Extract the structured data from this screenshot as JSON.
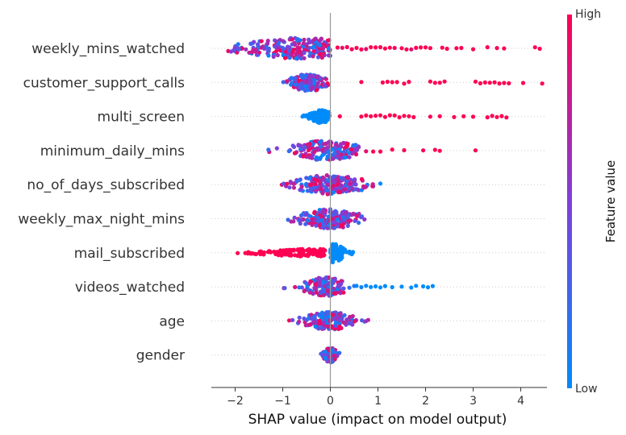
{
  "chart_data": {
    "type": "scatter",
    "subtype": "shap-beeswarm",
    "xlabel": "SHAP value (impact on model output)",
    "xlim": [
      -2.5,
      4.55
    ],
    "x_ticks": [
      -2,
      -1,
      0,
      1,
      2,
      3,
      4
    ],
    "colorbar": {
      "title": "Feature value",
      "high_label": "High",
      "low_label": "Low",
      "low_color": "#008bfb",
      "mid_color": "#7f3fdc",
      "high_color": "#ff0052"
    },
    "features": [
      {
        "name": "weekly_mins_watched",
        "neg": {
          "range": [
            -2.2,
            0.0
          ],
          "n": 230,
          "peak": -0.6,
          "spread": 0.65,
          "width": 13
        },
        "pos": {
          "points": [
            [
              0.15,
              1.0
            ],
            [
              0.25,
              0.9
            ],
            [
              0.35,
              1.0
            ],
            [
              0.45,
              0.95
            ],
            [
              0.55,
              1.0
            ],
            [
              0.65,
              1.0
            ],
            [
              0.75,
              0.9
            ],
            [
              0.85,
              1.0
            ],
            [
              0.95,
              1.0
            ],
            [
              1.05,
              1.0
            ],
            [
              1.15,
              1.0
            ],
            [
              1.25,
              1.0
            ],
            [
              1.35,
              0.95
            ],
            [
              1.5,
              1.0
            ],
            [
              1.6,
              1.0
            ],
            [
              1.7,
              0.9
            ],
            [
              1.8,
              1.0
            ],
            [
              1.9,
              1.0
            ],
            [
              2.0,
              1.0
            ],
            [
              2.1,
              1.0
            ],
            [
              2.35,
              1.0
            ],
            [
              2.45,
              1.0
            ],
            [
              2.65,
              1.0
            ],
            [
              2.75,
              1.0
            ],
            [
              3.0,
              1.0
            ],
            [
              3.3,
              1.0
            ],
            [
              3.5,
              1.0
            ],
            [
              3.65,
              1.0
            ],
            [
              4.3,
              1.0
            ],
            [
              4.4,
              1.0
            ]
          ]
        }
      },
      {
        "name": "customer_support_calls",
        "neg": {
          "range": [
            -1.0,
            0.0
          ],
          "n": 150,
          "peak": -0.45,
          "spread": 0.2,
          "width": 11
        },
        "pos": {
          "points": [
            [
              0.65,
              1.0
            ],
            [
              1.1,
              1.0
            ],
            [
              1.2,
              1.0
            ],
            [
              1.3,
              1.0
            ],
            [
              1.4,
              1.0
            ],
            [
              1.55,
              1.0
            ],
            [
              1.65,
              1.0
            ],
            [
              2.1,
              1.0
            ],
            [
              2.2,
              1.0
            ],
            [
              2.3,
              1.0
            ],
            [
              2.4,
              1.0
            ],
            [
              3.05,
              1.0
            ],
            [
              3.15,
              1.0
            ],
            [
              3.25,
              1.0
            ],
            [
              3.35,
              1.0
            ],
            [
              3.45,
              1.0
            ],
            [
              3.55,
              1.0
            ],
            [
              3.65,
              1.0
            ],
            [
              3.75,
              1.0
            ],
            [
              4.05,
              1.0
            ],
            [
              4.45,
              1.0
            ]
          ]
        }
      },
      {
        "name": "multi_screen",
        "neg": {
          "range": [
            -0.65,
            0.0
          ],
          "n": 160,
          "peak": -0.2,
          "spread": 0.12,
          "width": 8,
          "color": 0.0
        },
        "pos": {
          "points": [
            [
              0.2,
              1.0
            ],
            [
              0.65,
              1.0
            ],
            [
              0.75,
              1.0
            ],
            [
              0.85,
              1.0
            ],
            [
              0.95,
              1.0
            ],
            [
              1.05,
              1.0
            ],
            [
              1.15,
              1.0
            ],
            [
              1.25,
              1.0
            ],
            [
              1.35,
              1.0
            ],
            [
              1.45,
              1.0
            ],
            [
              1.55,
              1.0
            ],
            [
              1.65,
              1.0
            ],
            [
              1.75,
              1.0
            ],
            [
              2.1,
              1.0
            ],
            [
              2.3,
              1.0
            ],
            [
              2.6,
              1.0
            ],
            [
              2.8,
              1.0
            ],
            [
              3.0,
              1.0
            ],
            [
              3.3,
              1.0
            ],
            [
              3.4,
              1.0
            ],
            [
              3.5,
              1.0
            ],
            [
              3.6,
              1.0
            ],
            [
              3.7,
              1.0
            ]
          ]
        }
      },
      {
        "name": "minimum_daily_mins",
        "neg": {
          "range": [
            -1.4,
            0.6
          ],
          "n": 200,
          "peak": -0.1,
          "spread": 0.4,
          "width": 12
        },
        "pos": {
          "points": [
            [
              0.75,
              0.9
            ],
            [
              0.9,
              1.0
            ],
            [
              1.05,
              1.0
            ],
            [
              1.3,
              1.0
            ],
            [
              1.55,
              1.0
            ],
            [
              1.95,
              1.0
            ],
            [
              2.2,
              1.0
            ],
            [
              2.3,
              1.0
            ],
            [
              3.05,
              1.0
            ]
          ]
        }
      },
      {
        "name": "no_of_days_subscribed",
        "neg": {
          "range": [
            -1.55,
            0.9
          ],
          "n": 200,
          "peak": 0.0,
          "spread": 0.4,
          "width": 12
        },
        "pos": {
          "points": [
            [
              1.05,
              0.0
            ]
          ]
        }
      },
      {
        "name": "weekly_max_night_mins",
        "neg": {
          "range": [
            -1.1,
            1.0
          ],
          "n": 200,
          "peak": 0.0,
          "spread": 0.35,
          "width": 12
        },
        "pos": {
          "points": []
        }
      },
      {
        "name": "mail_subscribed",
        "neg": {
          "range": [
            -2.0,
            -0.1
          ],
          "n": 110,
          "peak": -0.3,
          "spread": 0.55,
          "width": 5,
          "color": 1.0
        },
        "pos": {
          "range": [
            0.0,
            0.5
          ],
          "n": 90,
          "peak": 0.08,
          "spread": 0.1,
          "width": 12,
          "color": 0.0
        }
      },
      {
        "name": "videos_watched",
        "neg": {
          "range": [
            -1.0,
            0.3
          ],
          "n": 150,
          "peak": -0.1,
          "spread": 0.25,
          "width": 12
        },
        "pos": {
          "points": [
            [
              0.55,
              0.0
            ],
            [
              0.65,
              0.05
            ],
            [
              0.75,
              0.0
            ],
            [
              0.85,
              0.0
            ],
            [
              0.95,
              0.0
            ],
            [
              1.05,
              0.0
            ],
            [
              1.15,
              0.0
            ],
            [
              1.3,
              0.0
            ],
            [
              1.5,
              0.0
            ],
            [
              1.7,
              0.0
            ],
            [
              1.8,
              0.0
            ],
            [
              1.95,
              0.0
            ],
            [
              2.05,
              0.0
            ],
            [
              2.15,
              0.0
            ],
            [
              0.4,
              0.2
            ],
            [
              0.5,
              0.1
            ]
          ]
        }
      },
      {
        "name": "age",
        "neg": {
          "range": [
            -1.0,
            1.0
          ],
          "n": 170,
          "peak": 0.0,
          "spread": 0.3,
          "width": 11
        },
        "pos": {
          "points": []
        }
      },
      {
        "name": "gender",
        "neg": {
          "range": [
            -0.45,
            0.25
          ],
          "n": 80,
          "peak": 0.0,
          "spread": 0.08,
          "width": 9
        },
        "pos": {
          "points": []
        }
      }
    ]
  }
}
